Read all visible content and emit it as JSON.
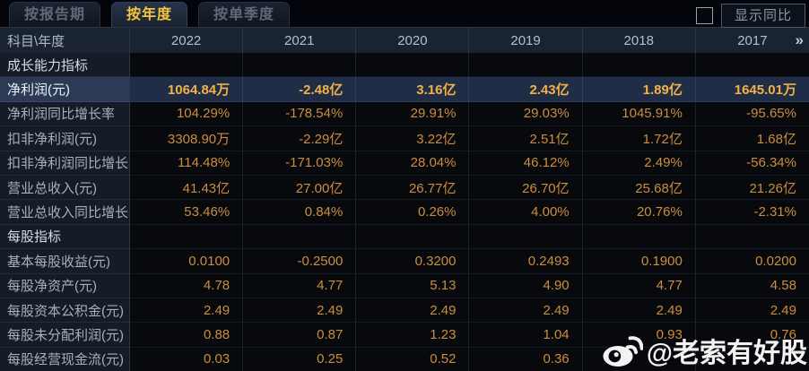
{
  "tabs": [
    {
      "label": "按报告期",
      "active": false
    },
    {
      "label": "按年度",
      "active": true
    },
    {
      "label": "按单季度",
      "active": false
    }
  ],
  "controls": {
    "show_yoy_label": "显示同比",
    "show_yoy_checked": false
  },
  "table": {
    "corner_label": "科目\\年度",
    "years": [
      "2022",
      "2021",
      "2020",
      "2019",
      "2018",
      "2017"
    ],
    "more_label": "»",
    "rows": [
      {
        "type": "section",
        "label": "成长能力指标"
      },
      {
        "type": "data",
        "highlight": true,
        "label": "净利润(元)",
        "values": [
          "1064.84万",
          "-2.48亿",
          "3.16亿",
          "2.43亿",
          "1.89亿",
          "1645.01万"
        ]
      },
      {
        "type": "data",
        "label": "净利润同比增长率",
        "values": [
          "104.29%",
          "-178.54%",
          "29.91%",
          "29.03%",
          "1045.91%",
          "-95.65%"
        ]
      },
      {
        "type": "data",
        "label": "扣非净利润(元)",
        "values": [
          "3308.90万",
          "-2.29亿",
          "3.22亿",
          "2.51亿",
          "1.72亿",
          "1.68亿"
        ]
      },
      {
        "type": "data",
        "label": "扣非净利润同比增长率",
        "values": [
          "114.48%",
          "-171.03%",
          "28.04%",
          "46.12%",
          "2.49%",
          "-56.34%"
        ]
      },
      {
        "type": "data",
        "label": "营业总收入(元)",
        "values": [
          "41.43亿",
          "27.00亿",
          "26.77亿",
          "26.70亿",
          "25.68亿",
          "21.26亿"
        ]
      },
      {
        "type": "data",
        "label": "营业总收入同比增长率",
        "values": [
          "53.46%",
          "0.84%",
          "0.26%",
          "4.00%",
          "20.76%",
          "-2.31%"
        ]
      },
      {
        "type": "section",
        "label": "每股指标"
      },
      {
        "type": "data",
        "label": "基本每股收益(元)",
        "values": [
          "0.0100",
          "-0.2500",
          "0.3200",
          "0.2493",
          "0.1900",
          "0.0200"
        ]
      },
      {
        "type": "data",
        "label": "每股净资产(元)",
        "values": [
          "4.78",
          "4.77",
          "5.13",
          "4.90",
          "4.77",
          "4.58"
        ]
      },
      {
        "type": "data",
        "label": "每股资本公积金(元)",
        "values": [
          "2.49",
          "2.49",
          "2.49",
          "2.49",
          "2.49",
          "2.49"
        ]
      },
      {
        "type": "data",
        "label": "每股未分配利润(元)",
        "values": [
          "0.88",
          "0.87",
          "1.23",
          "1.04",
          "0.93",
          "0.76"
        ]
      },
      {
        "type": "data",
        "label": "每股经营现金流(元)",
        "values": [
          "0.03",
          "0.25",
          "0.52",
          "0.36",
          "",
          ""
        ]
      }
    ]
  },
  "watermark": {
    "text": "@老索有好股"
  },
  "colors": {
    "accent_gold": "#f5c53e",
    "value_orange": "#cc8d3e",
    "highlight_row_bg": "#202d47",
    "highlight_value": "#f2b148",
    "header_bg": "#1a2332",
    "label_cell_bg": "#151c28",
    "page_bg": "#04060a"
  }
}
